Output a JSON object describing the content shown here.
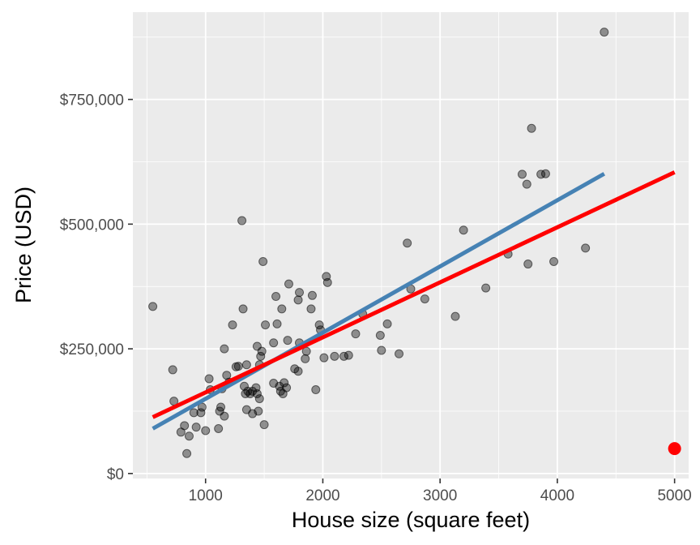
{
  "chart_data": {
    "type": "scatter",
    "title": "",
    "xlabel": "House size (square feet)",
    "ylabel": "Price (USD)",
    "xlim": [
      380,
      5120
    ],
    "ylim": [
      -10000,
      925000
    ],
    "x_ticks": [
      1000,
      2000,
      3000,
      4000,
      5000
    ],
    "x_tick_labels": [
      "1000",
      "2000",
      "3000",
      "4000",
      "5000"
    ],
    "y_ticks": [
      0,
      250000,
      500000,
      750000
    ],
    "y_tick_labels": [
      "$0",
      "$250,000",
      "$500,000",
      "$750,000"
    ],
    "grid": true,
    "background": "#ebebeb",
    "series": [
      {
        "kind": "points",
        "color": "#000000",
        "opacity": 0.4,
        "points": [
          [
            550,
            335000
          ],
          [
            720,
            208000
          ],
          [
            730,
            145000
          ],
          [
            790,
            83000
          ],
          [
            820,
            96000
          ],
          [
            840,
            40000
          ],
          [
            860,
            75000
          ],
          [
            900,
            122000
          ],
          [
            920,
            93000
          ],
          [
            960,
            122000
          ],
          [
            970,
            133000
          ],
          [
            1000,
            86000
          ],
          [
            1030,
            190000
          ],
          [
            1040,
            168000
          ],
          [
            1110,
            90000
          ],
          [
            1120,
            125000
          ],
          [
            1130,
            133000
          ],
          [
            1140,
            170000
          ],
          [
            1160,
            250000
          ],
          [
            1160,
            115000
          ],
          [
            1180,
            197000
          ],
          [
            1200,
            183000
          ],
          [
            1230,
            298000
          ],
          [
            1260,
            214000
          ],
          [
            1280,
            215000
          ],
          [
            1310,
            507000
          ],
          [
            1320,
            330000
          ],
          [
            1330,
            175000
          ],
          [
            1340,
            160000
          ],
          [
            1350,
            128000
          ],
          [
            1350,
            218000
          ],
          [
            1360,
            165000
          ],
          [
            1380,
            160000
          ],
          [
            1400,
            120000
          ],
          [
            1400,
            165000
          ],
          [
            1430,
            172000
          ],
          [
            1440,
            160000
          ],
          [
            1440,
            255000
          ],
          [
            1450,
            125000
          ],
          [
            1460,
            150000
          ],
          [
            1460,
            218000
          ],
          [
            1470,
            235000
          ],
          [
            1480,
            245000
          ],
          [
            1490,
            425000
          ],
          [
            1500,
            98000
          ],
          [
            1510,
            298000
          ],
          [
            1580,
            262000
          ],
          [
            1580,
            181000
          ],
          [
            1600,
            355000
          ],
          [
            1610,
            300000
          ],
          [
            1630,
            175000
          ],
          [
            1640,
            165000
          ],
          [
            1650,
            330000
          ],
          [
            1660,
            160000
          ],
          [
            1670,
            182000
          ],
          [
            1690,
            172000
          ],
          [
            1700,
            267000
          ],
          [
            1710,
            380000
          ],
          [
            1760,
            210000
          ],
          [
            1790,
            205000
          ],
          [
            1790,
            348000
          ],
          [
            1800,
            262000
          ],
          [
            1800,
            363000
          ],
          [
            1850,
            230000
          ],
          [
            1860,
            245000
          ],
          [
            1900,
            330000
          ],
          [
            1910,
            357000
          ],
          [
            1940,
            168000
          ],
          [
            1970,
            298000
          ],
          [
            1980,
            288000
          ],
          [
            2010,
            232000
          ],
          [
            2030,
            395000
          ],
          [
            2040,
            383000
          ],
          [
            2100,
            235000
          ],
          [
            2180,
            235000
          ],
          [
            2220,
            237000
          ],
          [
            2280,
            280000
          ],
          [
            2340,
            320000
          ],
          [
            2490,
            277000
          ],
          [
            2500,
            247000
          ],
          [
            2550,
            300000
          ],
          [
            2650,
            240000
          ],
          [
            2720,
            462000
          ],
          [
            2750,
            370000
          ],
          [
            2870,
            350000
          ],
          [
            3130,
            315000
          ],
          [
            3200,
            488000
          ],
          [
            3390,
            372000
          ],
          [
            3580,
            440000
          ],
          [
            3700,
            600000
          ],
          [
            3740,
            580000
          ],
          [
            3750,
            420000
          ],
          [
            3780,
            692000
          ],
          [
            3860,
            600000
          ],
          [
            3900,
            601000
          ],
          [
            3970,
            425000
          ],
          [
            4240,
            452000
          ],
          [
            4400,
            885000
          ]
        ]
      },
      {
        "kind": "point",
        "color": "#ff0000",
        "points": [
          [
            5000,
            50000
          ]
        ]
      },
      {
        "kind": "line",
        "color": "#4682b4",
        "points": [
          [
            550,
            90000
          ],
          [
            4400,
            601000
          ]
        ]
      },
      {
        "kind": "line",
        "color": "#ff0000",
        "points": [
          [
            550,
            113000
          ],
          [
            5000,
            604000
          ]
        ]
      }
    ]
  }
}
